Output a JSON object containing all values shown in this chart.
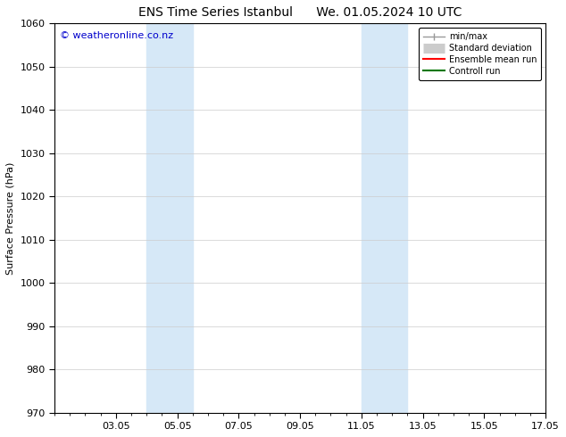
{
  "title_left": "ENS Time Series Istanbul",
  "title_right": "We. 01.05.2024 10 UTC",
  "ylabel": "Surface Pressure (hPa)",
  "ylim": [
    970,
    1060
  ],
  "yticks": [
    970,
    980,
    990,
    1000,
    1010,
    1020,
    1030,
    1040,
    1050,
    1060
  ],
  "xlim": [
    1.0,
    17.0
  ],
  "xtick_labels": [
    "03.05",
    "05.05",
    "07.05",
    "09.05",
    "11.05",
    "13.05",
    "15.05",
    "17.05"
  ],
  "xtick_positions": [
    3,
    5,
    7,
    9,
    11,
    13,
    15,
    17
  ],
  "shaded_bands": [
    {
      "x_start": 4.0,
      "x_end": 5.5
    },
    {
      "x_start": 11.0,
      "x_end": 12.5
    }
  ],
  "shaded_color": "#d6e8f7",
  "watermark_text": "© weatheronline.co.nz",
  "watermark_color": "#0000cc",
  "watermark_fontsize": 8,
  "legend_items": [
    {
      "label": "min/max"
    },
    {
      "label": "Standard deviation"
    },
    {
      "label": "Ensemble mean run"
    },
    {
      "label": "Controll run"
    }
  ],
  "legend_colors": [
    "#999999",
    "#cccccc",
    "#ff0000",
    "#007700"
  ],
  "bg_color": "#ffffff",
  "plot_bg_color": "#ffffff",
  "grid_color": "#cccccc",
  "tick_color": "#000000",
  "spine_color": "#000000",
  "font_size": 8,
  "title_fontsize": 10
}
